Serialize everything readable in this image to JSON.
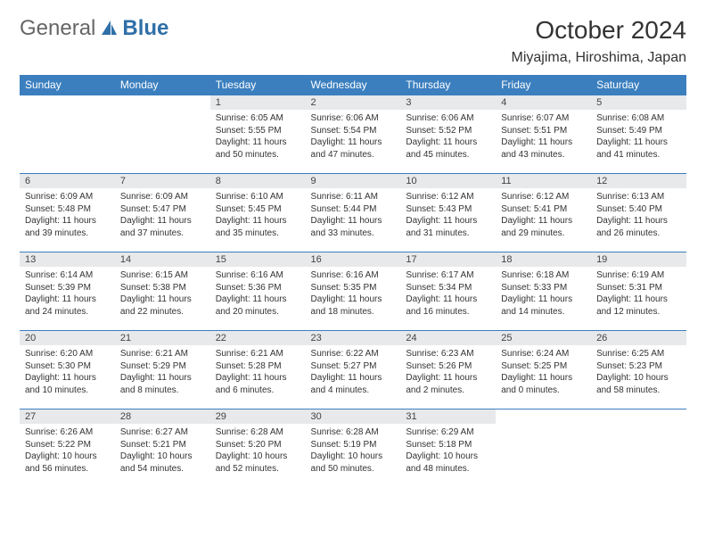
{
  "brand": {
    "part1": "General",
    "part2": "Blue"
  },
  "title": "October 2024",
  "location": "Miyajima, Hiroshima, Japan",
  "colors": {
    "header_bg": "#3b7fbf",
    "header_text": "#ffffff",
    "daynum_bg": "#e7e9eb",
    "row_border": "#3b7fbf",
    "logo_accent": "#2f6fa8"
  },
  "weekdays": [
    "Sunday",
    "Monday",
    "Tuesday",
    "Wednesday",
    "Thursday",
    "Friday",
    "Saturday"
  ],
  "cells": [
    {
      "day": "",
      "sunrise": "",
      "sunset": "",
      "daylight": ""
    },
    {
      "day": "",
      "sunrise": "",
      "sunset": "",
      "daylight": ""
    },
    {
      "day": "1",
      "sunrise": "Sunrise: 6:05 AM",
      "sunset": "Sunset: 5:55 PM",
      "daylight": "Daylight: 11 hours and 50 minutes."
    },
    {
      "day": "2",
      "sunrise": "Sunrise: 6:06 AM",
      "sunset": "Sunset: 5:54 PM",
      "daylight": "Daylight: 11 hours and 47 minutes."
    },
    {
      "day": "3",
      "sunrise": "Sunrise: 6:06 AM",
      "sunset": "Sunset: 5:52 PM",
      "daylight": "Daylight: 11 hours and 45 minutes."
    },
    {
      "day": "4",
      "sunrise": "Sunrise: 6:07 AM",
      "sunset": "Sunset: 5:51 PM",
      "daylight": "Daylight: 11 hours and 43 minutes."
    },
    {
      "day": "5",
      "sunrise": "Sunrise: 6:08 AM",
      "sunset": "Sunset: 5:49 PM",
      "daylight": "Daylight: 11 hours and 41 minutes."
    },
    {
      "day": "6",
      "sunrise": "Sunrise: 6:09 AM",
      "sunset": "Sunset: 5:48 PM",
      "daylight": "Daylight: 11 hours and 39 minutes."
    },
    {
      "day": "7",
      "sunrise": "Sunrise: 6:09 AM",
      "sunset": "Sunset: 5:47 PM",
      "daylight": "Daylight: 11 hours and 37 minutes."
    },
    {
      "day": "8",
      "sunrise": "Sunrise: 6:10 AM",
      "sunset": "Sunset: 5:45 PM",
      "daylight": "Daylight: 11 hours and 35 minutes."
    },
    {
      "day": "9",
      "sunrise": "Sunrise: 6:11 AM",
      "sunset": "Sunset: 5:44 PM",
      "daylight": "Daylight: 11 hours and 33 minutes."
    },
    {
      "day": "10",
      "sunrise": "Sunrise: 6:12 AM",
      "sunset": "Sunset: 5:43 PM",
      "daylight": "Daylight: 11 hours and 31 minutes."
    },
    {
      "day": "11",
      "sunrise": "Sunrise: 6:12 AM",
      "sunset": "Sunset: 5:41 PM",
      "daylight": "Daylight: 11 hours and 29 minutes."
    },
    {
      "day": "12",
      "sunrise": "Sunrise: 6:13 AM",
      "sunset": "Sunset: 5:40 PM",
      "daylight": "Daylight: 11 hours and 26 minutes."
    },
    {
      "day": "13",
      "sunrise": "Sunrise: 6:14 AM",
      "sunset": "Sunset: 5:39 PM",
      "daylight": "Daylight: 11 hours and 24 minutes."
    },
    {
      "day": "14",
      "sunrise": "Sunrise: 6:15 AM",
      "sunset": "Sunset: 5:38 PM",
      "daylight": "Daylight: 11 hours and 22 minutes."
    },
    {
      "day": "15",
      "sunrise": "Sunrise: 6:16 AM",
      "sunset": "Sunset: 5:36 PM",
      "daylight": "Daylight: 11 hours and 20 minutes."
    },
    {
      "day": "16",
      "sunrise": "Sunrise: 6:16 AM",
      "sunset": "Sunset: 5:35 PM",
      "daylight": "Daylight: 11 hours and 18 minutes."
    },
    {
      "day": "17",
      "sunrise": "Sunrise: 6:17 AM",
      "sunset": "Sunset: 5:34 PM",
      "daylight": "Daylight: 11 hours and 16 minutes."
    },
    {
      "day": "18",
      "sunrise": "Sunrise: 6:18 AM",
      "sunset": "Sunset: 5:33 PM",
      "daylight": "Daylight: 11 hours and 14 minutes."
    },
    {
      "day": "19",
      "sunrise": "Sunrise: 6:19 AM",
      "sunset": "Sunset: 5:31 PM",
      "daylight": "Daylight: 11 hours and 12 minutes."
    },
    {
      "day": "20",
      "sunrise": "Sunrise: 6:20 AM",
      "sunset": "Sunset: 5:30 PM",
      "daylight": "Daylight: 11 hours and 10 minutes."
    },
    {
      "day": "21",
      "sunrise": "Sunrise: 6:21 AM",
      "sunset": "Sunset: 5:29 PM",
      "daylight": "Daylight: 11 hours and 8 minutes."
    },
    {
      "day": "22",
      "sunrise": "Sunrise: 6:21 AM",
      "sunset": "Sunset: 5:28 PM",
      "daylight": "Daylight: 11 hours and 6 minutes."
    },
    {
      "day": "23",
      "sunrise": "Sunrise: 6:22 AM",
      "sunset": "Sunset: 5:27 PM",
      "daylight": "Daylight: 11 hours and 4 minutes."
    },
    {
      "day": "24",
      "sunrise": "Sunrise: 6:23 AM",
      "sunset": "Sunset: 5:26 PM",
      "daylight": "Daylight: 11 hours and 2 minutes."
    },
    {
      "day": "25",
      "sunrise": "Sunrise: 6:24 AM",
      "sunset": "Sunset: 5:25 PM",
      "daylight": "Daylight: 11 hours and 0 minutes."
    },
    {
      "day": "26",
      "sunrise": "Sunrise: 6:25 AM",
      "sunset": "Sunset: 5:23 PM",
      "daylight": "Daylight: 10 hours and 58 minutes."
    },
    {
      "day": "27",
      "sunrise": "Sunrise: 6:26 AM",
      "sunset": "Sunset: 5:22 PM",
      "daylight": "Daylight: 10 hours and 56 minutes."
    },
    {
      "day": "28",
      "sunrise": "Sunrise: 6:27 AM",
      "sunset": "Sunset: 5:21 PM",
      "daylight": "Daylight: 10 hours and 54 minutes."
    },
    {
      "day": "29",
      "sunrise": "Sunrise: 6:28 AM",
      "sunset": "Sunset: 5:20 PM",
      "daylight": "Daylight: 10 hours and 52 minutes."
    },
    {
      "day": "30",
      "sunrise": "Sunrise: 6:28 AM",
      "sunset": "Sunset: 5:19 PM",
      "daylight": "Daylight: 10 hours and 50 minutes."
    },
    {
      "day": "31",
      "sunrise": "Sunrise: 6:29 AM",
      "sunset": "Sunset: 5:18 PM",
      "daylight": "Daylight: 10 hours and 48 minutes."
    },
    {
      "day": "",
      "sunrise": "",
      "sunset": "",
      "daylight": ""
    },
    {
      "day": "",
      "sunrise": "",
      "sunset": "",
      "daylight": ""
    }
  ]
}
